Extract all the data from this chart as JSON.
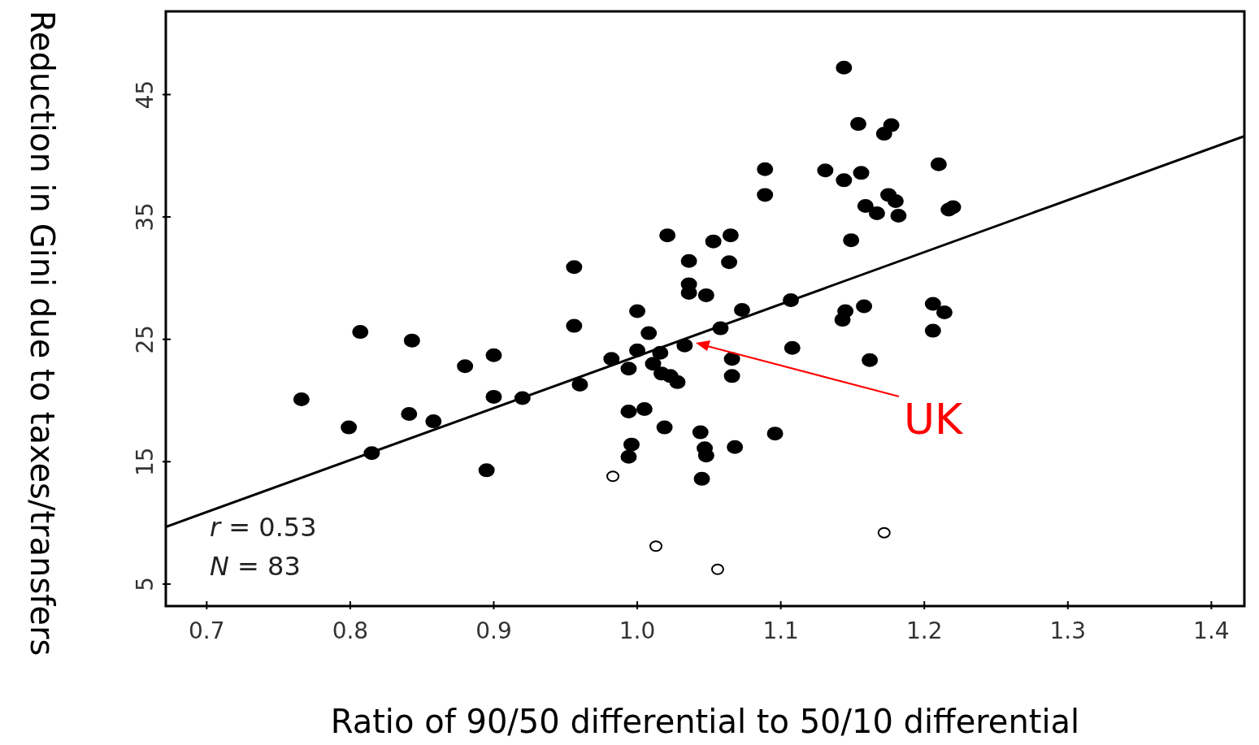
{
  "chart_data": {
    "type": "scatter",
    "xlabel": "Ratio of 90/50 differential to 50/10 differential",
    "ylabel": "Reduction in Gini due to taxes/transfers",
    "xlim": [
      0.6715,
      1.423
    ],
    "ylim": [
      3.2,
      51.8
    ],
    "xticks": [
      0.7,
      0.8,
      0.9,
      {
        "value": 1,
        "label": "1.0"
      },
      1.1,
      1.2,
      1.3,
      1.4
    ],
    "yticks": [
      5,
      15,
      25,
      35,
      45
    ],
    "marker": "circle",
    "series": [
      {
        "color": "#000000",
        "x": [
          0.766,
          0.799,
          0.807,
          0.815,
          0.841,
          0.843,
          0.858,
          0.88,
          0.895,
          0.9,
          0.9,
          0.92,
          0.956,
          0.956,
          0.96,
          0.982,
          0.994,
          0.994,
          0.996,
          0.994,
          1.0,
          1.0,
          1.005,
          1.008,
          1.011,
          1.016,
          1.017,
          1.019,
          1.021,
          1.023,
          1.028,
          1.033,
          1.036,
          1.036,
          1.036,
          1.044,
          1.045,
          1.048,
          1.047,
          1.048,
          1.053,
          1.058,
          1.065,
          1.064,
          1.066,
          1.066,
          1.068,
          1.073,
          1.089,
          1.089,
          1.096,
          1.107,
          1.108,
          1.131,
          1.144,
          1.144,
          1.145,
          1.143,
          1.149,
          1.154,
          1.156,
          1.158,
          1.159,
          1.162,
          1.167,
          1.172,
          1.175,
          1.177,
          1.18,
          1.182,
          1.206,
          1.206,
          1.21,
          1.214,
          1.217,
          1.22
        ],
        "values": [
          20.1,
          17.8,
          25.6,
          15.7,
          18.9,
          24.9,
          18.3,
          22.8,
          14.3,
          23.7,
          20.3,
          20.2,
          30.9,
          26.1,
          21.3,
          23.4,
          22.6,
          19.1,
          16.4,
          15.4,
          27.3,
          24.1,
          19.3,
          25.5,
          23.0,
          23.9,
          22.2,
          17.8,
          33.5,
          22.0,
          21.5,
          24.5,
          31.4,
          29.5,
          28.8,
          17.4,
          13.6,
          28.6,
          16.1,
          15.5,
          33.0,
          25.9,
          33.5,
          31.3,
          23.4,
          22.0,
          16.2,
          27.4,
          38.9,
          36.8,
          17.3,
          28.2,
          24.3,
          38.8,
          47.2,
          38.0,
          27.3,
          26.6,
          33.1,
          42.6,
          38.6,
          27.7,
          35.9,
          23.3,
          35.3,
          41.8,
          36.8,
          42.5,
          36.3,
          35.1,
          27.9,
          25.7,
          39.3,
          27.2,
          35.6,
          35.8
        ]
      },
      {
        "color": "#ffffff",
        "x": [
          0.983,
          1.013,
          1.056,
          1.172
        ],
        "values": [
          13.8,
          8.1,
          6.2,
          9.2
        ]
      },
      {
        "type": "line",
        "color": "#000000",
        "x": [
          0.6715,
          1.423
        ],
        "values": [
          9.67,
          41.6
        ],
        "marker": "none"
      }
    ],
    "annotations": [
      "UK",
      "r = 0.53",
      "N = 83"
    ]
  }
}
